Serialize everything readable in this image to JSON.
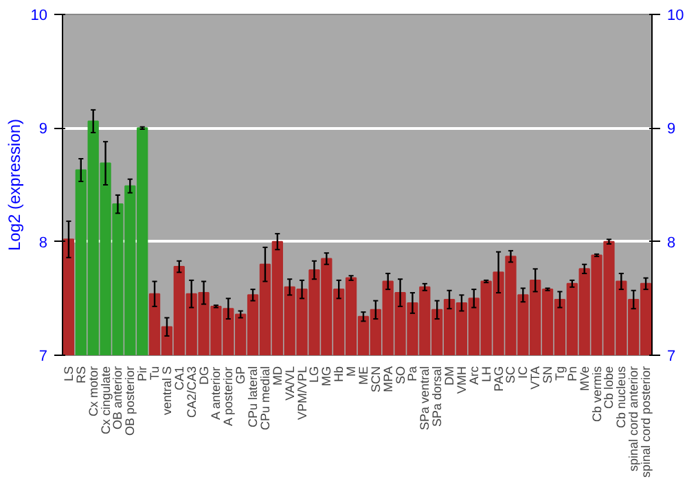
{
  "chart_data": {
    "type": "bar",
    "ylabel": "Log2 (expression)",
    "categories": [
      "LS",
      "RS",
      "Cx motor",
      "Cx cingulate",
      "OB anterior",
      "OB posterior",
      "Pir",
      "Tu",
      "ventral S",
      "CA1",
      "CA2/CA3",
      "DG",
      "A anterior",
      "A posterior",
      "GP",
      "CPu lateral",
      "CPu medial",
      "MD",
      "VA/VL",
      "VPM/VPL",
      "LG",
      "MG",
      "Hb",
      "M",
      "ME",
      "SCN",
      "MPA",
      "SO",
      "Pa",
      "SPa ventral",
      "SPa dorsal",
      "DM",
      "VMH",
      "Arc",
      "LH",
      "PAG",
      "SC",
      "IC",
      "VTA",
      "SN",
      "Tg",
      "Pn",
      "MVe",
      "Cb vermis",
      "Cb lobe",
      "Cb nucleus",
      "spinal cord anterior",
      "spinal cord posterior"
    ],
    "values": [
      8.02,
      8.63,
      9.06,
      8.69,
      8.33,
      8.49,
      9.0,
      7.54,
      7.25,
      7.78,
      7.54,
      7.55,
      7.43,
      7.41,
      7.36,
      7.53,
      7.8,
      8.0,
      7.6,
      7.58,
      7.75,
      7.85,
      7.58,
      7.68,
      7.34,
      7.4,
      7.65,
      7.55,
      7.46,
      7.6,
      7.4,
      7.49,
      7.46,
      7.5,
      7.65,
      7.73,
      7.87,
      7.53,
      7.66,
      7.58,
      7.49,
      7.63,
      7.76,
      7.88,
      8.0,
      7.65,
      7.49,
      7.63
    ],
    "errors": [
      0.16,
      0.1,
      0.1,
      0.19,
      0.08,
      0.06,
      0.01,
      0.11,
      0.08,
      0.05,
      0.12,
      0.1,
      0.01,
      0.09,
      0.03,
      0.05,
      0.15,
      0.07,
      0.07,
      0.08,
      0.08,
      0.05,
      0.08,
      0.02,
      0.04,
      0.08,
      0.07,
      0.12,
      0.09,
      0.03,
      0.08,
      0.08,
      0.07,
      0.08,
      0.01,
      0.18,
      0.05,
      0.06,
      0.1,
      0.01,
      0.07,
      0.03,
      0.04,
      0.01,
      0.02,
      0.07,
      0.08,
      0.05
    ],
    "colors": [
      "#b22a2a",
      "#2ea32e",
      "#2ea32e",
      "#2ea32e",
      "#2ea32e",
      "#2ea32e",
      "#2ea32e",
      "#b22a2a",
      "#b22a2a",
      "#b22a2a",
      "#b22a2a",
      "#b22a2a",
      "#b22a2a",
      "#b22a2a",
      "#b22a2a",
      "#b22a2a",
      "#b22a2a",
      "#b22a2a",
      "#b22a2a",
      "#b22a2a",
      "#b22a2a",
      "#b22a2a",
      "#b22a2a",
      "#b22a2a",
      "#b22a2a",
      "#b22a2a",
      "#b22a2a",
      "#b22a2a",
      "#b22a2a",
      "#b22a2a",
      "#b22a2a",
      "#b22a2a",
      "#b22a2a",
      "#b22a2a",
      "#b22a2a",
      "#b22a2a",
      "#b22a2a",
      "#b22a2a",
      "#b22a2a",
      "#b22a2a",
      "#b22a2a",
      "#b22a2a",
      "#b22a2a",
      "#b22a2a",
      "#b22a2a",
      "#b22a2a",
      "#b22a2a",
      "#b22a2a"
    ],
    "ylim": [
      7,
      10
    ],
    "yticks": [
      7,
      8,
      9,
      10
    ],
    "y2lim": [
      7,
      10
    ],
    "y2ticks": [
      7,
      8,
      9,
      10
    ],
    "grid": "y"
  }
}
